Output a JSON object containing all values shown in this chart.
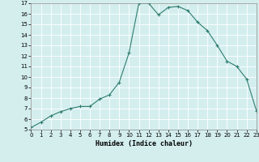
{
  "x": [
    0,
    1,
    2,
    3,
    4,
    5,
    6,
    7,
    8,
    9,
    10,
    11,
    12,
    13,
    14,
    15,
    16,
    17,
    18,
    19,
    20,
    21,
    22,
    23
  ],
  "y": [
    5.2,
    5.7,
    6.3,
    6.7,
    7.0,
    7.2,
    7.2,
    7.9,
    8.3,
    9.5,
    12.3,
    17.0,
    17.0,
    15.9,
    16.6,
    16.7,
    16.3,
    15.2,
    14.4,
    13.0,
    11.5,
    11.0,
    9.8,
    6.8
  ],
  "line_color": "#2e7d6e",
  "marker": "+",
  "marker_size": 3,
  "marker_lw": 0.8,
  "line_width": 0.8,
  "bg_color": "#d4eeee",
  "grid_color": "#ffffff",
  "xlabel": "Humidex (Indice chaleur)",
  "ylim": [
    5,
    17
  ],
  "xlim": [
    0,
    23
  ],
  "yticks": [
    5,
    6,
    7,
    8,
    9,
    10,
    11,
    12,
    13,
    14,
    15,
    16,
    17
  ],
  "xticks": [
    0,
    1,
    2,
    3,
    4,
    5,
    6,
    7,
    8,
    9,
    10,
    11,
    12,
    13,
    14,
    15,
    16,
    17,
    18,
    19,
    20,
    21,
    22,
    23
  ]
}
